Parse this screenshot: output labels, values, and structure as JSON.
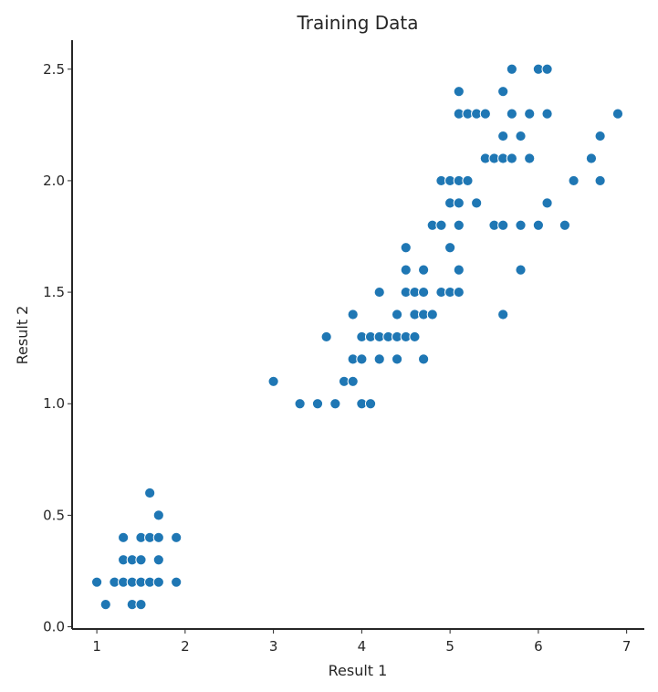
{
  "chart_data": {
    "type": "scatter",
    "title": "Training Data",
    "xlabel": "Result 1",
    "ylabel": "Result 2",
    "xlim": [
      0.72,
      7.2
    ],
    "ylim": [
      -0.01,
      2.63
    ],
    "xticks": [
      1,
      2,
      3,
      4,
      5,
      6,
      7
    ],
    "yticks": [
      0.0,
      0.5,
      1.0,
      1.5,
      2.0,
      2.5
    ],
    "grid": false,
    "color": "#1f77b4",
    "points": [
      [
        1.0,
        0.2
      ],
      [
        1.1,
        0.1
      ],
      [
        1.2,
        0.2
      ],
      [
        1.3,
        0.2
      ],
      [
        1.3,
        0.3
      ],
      [
        1.3,
        0.4
      ],
      [
        1.4,
        0.1
      ],
      [
        1.4,
        0.2
      ],
      [
        1.4,
        0.3
      ],
      [
        1.5,
        0.1
      ],
      [
        1.5,
        0.2
      ],
      [
        1.5,
        0.3
      ],
      [
        1.5,
        0.4
      ],
      [
        1.6,
        0.2
      ],
      [
        1.6,
        0.4
      ],
      [
        1.6,
        0.6
      ],
      [
        1.7,
        0.2
      ],
      [
        1.7,
        0.3
      ],
      [
        1.7,
        0.4
      ],
      [
        1.7,
        0.5
      ],
      [
        1.9,
        0.2
      ],
      [
        1.9,
        0.4
      ],
      [
        3.0,
        1.1
      ],
      [
        3.3,
        1.0
      ],
      [
        3.5,
        1.0
      ],
      [
        3.6,
        1.3
      ],
      [
        3.7,
        1.0
      ],
      [
        3.8,
        1.1
      ],
      [
        3.9,
        1.1
      ],
      [
        3.9,
        1.2
      ],
      [
        3.9,
        1.4
      ],
      [
        4.0,
        1.0
      ],
      [
        4.0,
        1.2
      ],
      [
        4.0,
        1.3
      ],
      [
        4.1,
        1.0
      ],
      [
        4.1,
        1.3
      ],
      [
        4.2,
        1.2
      ],
      [
        4.2,
        1.3
      ],
      [
        4.2,
        1.5
      ],
      [
        4.3,
        1.3
      ],
      [
        4.4,
        1.2
      ],
      [
        4.4,
        1.3
      ],
      [
        4.4,
        1.4
      ],
      [
        4.5,
        1.3
      ],
      [
        4.5,
        1.5
      ],
      [
        4.5,
        1.6
      ],
      [
        4.5,
        1.7
      ],
      [
        4.6,
        1.3
      ],
      [
        4.6,
        1.4
      ],
      [
        4.6,
        1.5
      ],
      [
        4.7,
        1.2
      ],
      [
        4.7,
        1.4
      ],
      [
        4.7,
        1.5
      ],
      [
        4.7,
        1.6
      ],
      [
        4.8,
        1.4
      ],
      [
        4.8,
        1.8
      ],
      [
        4.9,
        1.5
      ],
      [
        4.9,
        1.8
      ],
      [
        4.9,
        2.0
      ],
      [
        5.0,
        1.5
      ],
      [
        5.0,
        1.7
      ],
      [
        5.0,
        1.9
      ],
      [
        5.0,
        2.0
      ],
      [
        5.1,
        1.5
      ],
      [
        5.1,
        1.6
      ],
      [
        5.1,
        1.8
      ],
      [
        5.1,
        1.9
      ],
      [
        5.1,
        2.0
      ],
      [
        5.1,
        2.3
      ],
      [
        5.1,
        2.4
      ],
      [
        5.2,
        2.0
      ],
      [
        5.2,
        2.3
      ],
      [
        5.3,
        1.9
      ],
      [
        5.3,
        2.3
      ],
      [
        5.4,
        2.1
      ],
      [
        5.4,
        2.3
      ],
      [
        5.5,
        1.8
      ],
      [
        5.5,
        2.1
      ],
      [
        5.6,
        1.4
      ],
      [
        5.6,
        1.8
      ],
      [
        5.6,
        2.1
      ],
      [
        5.6,
        2.2
      ],
      [
        5.6,
        2.4
      ],
      [
        5.7,
        2.1
      ],
      [
        5.7,
        2.3
      ],
      [
        5.7,
        2.5
      ],
      [
        5.8,
        1.6
      ],
      [
        5.8,
        1.8
      ],
      [
        5.8,
        2.2
      ],
      [
        5.9,
        2.1
      ],
      [
        5.9,
        2.3
      ],
      [
        6.0,
        1.8
      ],
      [
        6.0,
        2.5
      ],
      [
        6.1,
        1.9
      ],
      [
        6.1,
        2.3
      ],
      [
        6.1,
        2.5
      ],
      [
        6.3,
        1.8
      ],
      [
        6.4,
        2.0
      ],
      [
        6.6,
        2.1
      ],
      [
        6.7,
        2.0
      ],
      [
        6.7,
        2.2
      ],
      [
        6.9,
        2.3
      ]
    ]
  }
}
